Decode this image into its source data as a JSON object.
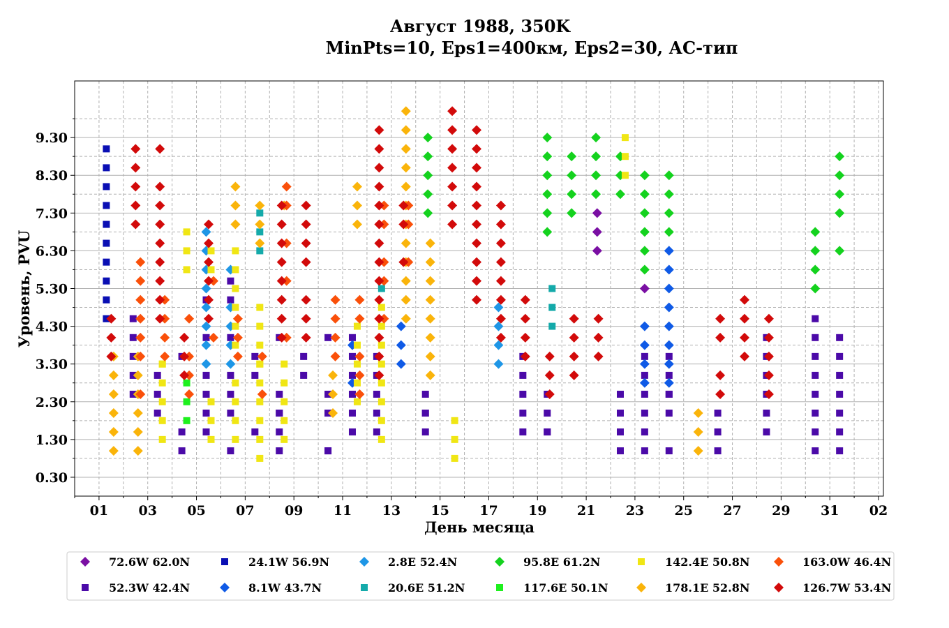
{
  "chart_data": {
    "type": "scatter",
    "title": [
      "Август 1988, 350K",
      "MinPts=10, Eps1=400км, Eps2=30, АС-тип"
    ],
    "xlabel": "День месяца",
    "ylabel": "Уровень, PVU",
    "x_ticks": [
      "01",
      "03",
      "05",
      "07",
      "09",
      "11",
      "13",
      "15",
      "17",
      "19",
      "21",
      "23",
      "25",
      "27",
      "29",
      "31",
      "02"
    ],
    "y_ticks": [
      "0.30",
      "1.30",
      "2.30",
      "3.30",
      "4.30",
      "5.30",
      "6.30",
      "7.30",
      "8.30",
      "9.30"
    ],
    "xlim": [
      0,
      33.2
    ],
    "ylim": [
      -0.2,
      10.8
    ],
    "grid": true,
    "legend_position": "bottom",
    "series": [
      {
        "name": "72.6W 62.0N",
        "marker": "diamond",
        "color": "#7a0fa3",
        "x": [
          21.45,
          21.45,
          21.45,
          23.4
        ],
        "y": [
          7.3,
          6.8,
          6.3,
          5.3
        ]
      },
      {
        "name": "52.3W 42.4N",
        "marker": "square",
        "color": "#4b0aa8",
        "x": [
          2.4,
          2.4,
          2.4,
          2.4,
          2.4,
          3.4,
          3.4,
          3.4,
          4.4,
          4.4,
          4.4,
          5.4,
          5.4,
          5.4,
          5.4,
          5.4,
          5.4,
          6.4,
          6.4,
          6.4,
          6.4,
          6.4,
          6.4,
          6.4,
          7.4,
          7.4,
          7.4,
          8.4,
          8.4,
          8.4,
          8.4,
          8.4,
          8.4,
          9.4,
          9.4,
          10.4,
          10.4,
          10.4,
          10.4,
          10.4,
          10.4,
          11.4,
          11.4,
          11.4,
          11.4,
          11.4,
          11.4,
          12.4,
          12.4,
          12.4,
          12.4,
          12.4,
          14.4,
          14.4,
          14.4,
          14.4,
          18.4,
          18.4,
          18.4,
          18.4,
          18.4,
          19.4,
          19.4,
          19.4,
          19.4,
          22.4,
          22.4,
          22.4,
          22.4,
          23.4,
          23.4,
          23.4,
          23.4,
          23.4,
          23.4,
          24.4,
          24.4,
          24.4,
          24.4,
          24.4,
          24.4,
          26.4,
          26.4,
          26.4,
          28.4,
          28.4,
          28.4,
          28.4,
          28.4,
          28.4,
          30.4,
          30.4,
          30.4,
          30.4,
          30.4,
          30.4,
          30.4,
          30.4,
          31.4,
          31.4,
          31.4,
          31.4,
          31.4,
          31.4,
          31.4
        ],
        "y": [
          4.5,
          4.0,
          3.5,
          3.0,
          2.5,
          3.0,
          2.5,
          2.0,
          3.5,
          1.5,
          1.0,
          5.0,
          4.0,
          3.0,
          2.5,
          2.0,
          1.5,
          1.0,
          5.5,
          5.0,
          4.0,
          3.0,
          2.5,
          2.0,
          1.5,
          3.5,
          3.0,
          2.5,
          2.0,
          2.0,
          1.5,
          1.0,
          4.0,
          3.5,
          3.0,
          2.5,
          2.0,
          1.0,
          2.0,
          1.0,
          4.0,
          3.5,
          3.0,
          2.5,
          2.0,
          1.5,
          4.0,
          3.5,
          3.0,
          2.5,
          2.0,
          1.5,
          2.0,
          1.5,
          2.5,
          2.0,
          1.5,
          3.5,
          3.0,
          2.5,
          2.0,
          1.5,
          2.5,
          2.0,
          1.5,
          1.0,
          2.5,
          2.0,
          1.5,
          1.0,
          3.5,
          3.0,
          2.5,
          2.0,
          1.5,
          1.0,
          3.5,
          3.0,
          2.5,
          2.0,
          2.5,
          2.0,
          1.5,
          1.0,
          4.0,
          3.5,
          3.0,
          2.5,
          2.0,
          1.5,
          4.5,
          4.0,
          3.5,
          3.0,
          2.5,
          2.0,
          1.5,
          1.0,
          4.0,
          3.5,
          3.0,
          2.5,
          2.0,
          1.5,
          1.0
        ]
      },
      {
        "name": "24.1W 56.9N",
        "marker": "square",
        "color": "#0a0fb4",
        "x": [
          1.3,
          1.3,
          1.3,
          1.3,
          1.3,
          1.3,
          1.3,
          1.3,
          1.3,
          1.3
        ],
        "y": [
          9.0,
          8.5,
          8.0,
          7.5,
          7.0,
          6.5,
          6.0,
          5.5,
          5.0,
          4.5
        ]
      },
      {
        "name": "8.1W 43.7N",
        "marker": "diamond",
        "color": "#0f5ae6",
        "x": [
          11.4,
          11.4,
          13.4,
          13.4,
          13.4,
          23.4,
          23.4,
          23.4,
          23.4,
          24.4,
          24.4,
          24.4,
          24.4,
          24.4,
          24.4,
          24.4,
          24.4
        ],
        "y": [
          3.8,
          2.8,
          4.3,
          3.8,
          3.3,
          4.3,
          3.8,
          3.3,
          2.8,
          6.3,
          5.8,
          5.3,
          4.8,
          4.3,
          3.8,
          3.3,
          2.8
        ]
      },
      {
        "name": "2.8E 52.4N",
        "marker": "diamond",
        "color": "#1e96e6",
        "x": [
          5.4,
          5.4,
          5.4,
          5.4,
          5.4,
          5.4,
          5.4,
          5.4,
          6.4,
          6.4,
          6.4,
          6.4,
          6.4,
          17.4,
          17.4,
          17.4,
          17.4
        ],
        "y": [
          6.8,
          6.3,
          5.8,
          5.3,
          4.8,
          4.3,
          3.8,
          3.3,
          5.8,
          4.8,
          4.3,
          3.8,
          3.3,
          4.8,
          4.3,
          3.8,
          3.3
        ]
      },
      {
        "name": "20.6E 51.2N",
        "marker": "square",
        "color": "#14aaaa",
        "x": [
          7.6,
          7.6,
          7.6,
          12.6,
          19.6,
          19.6,
          19.6
        ],
        "y": [
          7.3,
          6.8,
          6.3,
          5.3,
          5.3,
          4.8,
          4.3
        ]
      },
      {
        "name": "95.8E 61.2N",
        "marker": "diamond",
        "color": "#14d21e",
        "x": [
          14.5,
          14.5,
          14.5,
          14.5,
          14.5,
          19.4,
          19.4,
          19.4,
          19.4,
          19.4,
          19.4,
          20.4,
          20.4,
          20.4,
          20.4,
          21.4,
          21.4,
          21.4,
          21.4,
          22.4,
          22.4,
          22.4,
          23.4,
          23.4,
          23.4,
          23.4,
          23.4,
          23.4,
          24.4,
          24.4,
          24.4,
          24.4,
          30.4,
          30.4,
          30.4,
          30.4,
          31.4,
          31.4,
          31.4,
          31.4,
          31.4
        ],
        "y": [
          9.3,
          8.8,
          8.3,
          7.8,
          7.3,
          9.3,
          8.8,
          8.3,
          7.8,
          7.3,
          6.8,
          8.8,
          8.3,
          7.8,
          7.3,
          9.3,
          8.8,
          8.3,
          7.8,
          8.8,
          8.3,
          7.8,
          8.3,
          7.8,
          7.3,
          6.8,
          6.3,
          5.8,
          8.3,
          7.8,
          7.3,
          6.8,
          6.8,
          6.3,
          5.8,
          5.3,
          8.8,
          8.3,
          7.8,
          7.3,
          6.3
        ]
      },
      {
        "name": "117.6E 50.1N",
        "marker": "square",
        "color": "#1ef01e",
        "x": [
          4.6,
          4.6,
          4.6
        ],
        "y": [
          2.8,
          2.3,
          1.8
        ]
      },
      {
        "name": "142.4E 50.8N",
        "marker": "square",
        "color": "#f0e614",
        "x": [
          3.6,
          3.6,
          3.6,
          3.6,
          3.6,
          3.6,
          4.6,
          4.6,
          4.6,
          5.6,
          5.6,
          5.6,
          5.6,
          5.6,
          6.6,
          6.6,
          6.6,
          6.6,
          6.6,
          6.6,
          6.6,
          6.6,
          6.6,
          6.6,
          7.6,
          7.6,
          7.6,
          7.6,
          7.6,
          7.6,
          7.6,
          7.6,
          7.6,
          7.6,
          8.6,
          8.6,
          8.6,
          8.6,
          8.6,
          11.6,
          11.6,
          11.6,
          11.6,
          11.6,
          12.6,
          12.6,
          12.6,
          12.6,
          12.6,
          12.6,
          12.6,
          12.6,
          15.6,
          15.6,
          15.6,
          22.6,
          22.6,
          22.6
        ],
        "y": [
          3.3,
          2.8,
          2.3,
          1.8,
          1.3,
          3.3,
          6.8,
          6.3,
          5.8,
          6.3,
          5.8,
          2.3,
          1.8,
          1.3,
          6.3,
          5.8,
          5.3,
          4.8,
          4.3,
          3.8,
          2.8,
          2.3,
          1.8,
          1.3,
          4.8,
          4.3,
          3.8,
          3.3,
          2.8,
          2.3,
          1.8,
          1.3,
          0.8,
          3.3,
          3.3,
          2.8,
          2.3,
          1.8,
          1.3,
          4.3,
          3.8,
          3.3,
          2.8,
          2.3,
          4.8,
          4.3,
          3.8,
          3.3,
          2.8,
          2.3,
          1.8,
          1.3,
          1.8,
          1.3,
          0.8,
          9.3,
          8.8,
          8.3
        ]
      },
      {
        "name": "178.1E 52.8N",
        "marker": "diamond",
        "color": "#fab40a",
        "x": [
          1.6,
          1.6,
          1.6,
          1.6,
          1.6,
          1.6,
          2.6,
          2.6,
          2.6,
          2.6,
          2.6,
          2.6,
          6.6,
          6.6,
          6.6,
          7.6,
          7.6,
          7.6,
          8.6,
          10.6,
          10.6,
          10.6,
          11.6,
          11.6,
          11.6,
          13.6,
          13.6,
          13.6,
          13.6,
          13.6,
          13.6,
          13.6,
          13.6,
          13.6,
          13.6,
          13.6,
          13.6,
          14.6,
          14.6,
          14.6,
          14.6,
          14.6,
          14.6,
          14.6,
          14.6,
          25.6,
          25.6,
          25.6
        ],
        "y": [
          3.5,
          3.0,
          2.5,
          2.0,
          1.5,
          1.0,
          3.5,
          3.0,
          2.5,
          2.0,
          1.5,
          1.0,
          8.0,
          7.5,
          7.0,
          7.5,
          7.0,
          6.5,
          7.5,
          3.0,
          2.5,
          2.0,
          8.0,
          7.5,
          7.0,
          10.0,
          9.5,
          9.0,
          8.5,
          8.0,
          7.5,
          7.0,
          6.5,
          6.0,
          5.5,
          5.0,
          4.5,
          6.5,
          6.0,
          5.5,
          5.0,
          4.5,
          4.0,
          3.5,
          3.0,
          2.0,
          1.5,
          1.0
        ]
      },
      {
        "name": "163.0W 46.4N",
        "marker": "diamond",
        "color": "#fa500a",
        "x": [
          2.7,
          2.7,
          2.7,
          2.7,
          2.7,
          2.7,
          2.7,
          3.7,
          3.7,
          3.7,
          3.7,
          4.7,
          4.7,
          4.7,
          4.7,
          5.7,
          5.7,
          6.7,
          6.7,
          6.7,
          7.7,
          7.7,
          8.7,
          8.7,
          8.7,
          8.7,
          8.7,
          10.7,
          10.7,
          10.7,
          10.7,
          11.7,
          11.7,
          11.7,
          11.7,
          11.7,
          12.7,
          12.7,
          12.7,
          12.7,
          12.7,
          13.7,
          13.7,
          13.7
        ],
        "y": [
          6.0,
          5.5,
          5.0,
          4.5,
          4.0,
          3.5,
          2.5,
          5.0,
          4.5,
          4.0,
          3.5,
          4.5,
          3.5,
          3.0,
          2.5,
          5.5,
          4.0,
          4.5,
          4.0,
          3.5,
          3.5,
          2.5,
          8.0,
          7.5,
          6.5,
          5.5,
          4.0,
          5.0,
          4.5,
          4.0,
          3.5,
          5.0,
          4.5,
          3.5,
          3.0,
          2.5,
          7.5,
          7.0,
          6.0,
          5.5,
          4.5,
          7.5,
          7.0,
          6.0
        ]
      },
      {
        "name": "126.7W 53.4N",
        "marker": "diamond",
        "color": "#d20a0a",
        "x": [
          1.5,
          1.5,
          1.5,
          2.5,
          2.5,
          2.5,
          2.5,
          2.5,
          3.5,
          3.5,
          3.5,
          3.5,
          3.5,
          3.5,
          3.5,
          3.5,
          3.5,
          4.5,
          4.5,
          4.5,
          5.5,
          5.5,
          5.5,
          5.5,
          5.5,
          5.5,
          8.5,
          8.5,
          8.5,
          8.5,
          8.5,
          8.5,
          8.5,
          8.5,
          9.5,
          9.5,
          9.5,
          9.5,
          9.5,
          9.5,
          9.5,
          12.5,
          12.5,
          12.5,
          12.5,
          12.5,
          12.5,
          12.5,
          12.5,
          12.5,
          12.5,
          12.5,
          12.5,
          12.5,
          12.5,
          13.5,
          13.5,
          13.5,
          15.5,
          15.5,
          15.5,
          15.5,
          15.5,
          15.5,
          15.5,
          16.5,
          16.5,
          16.5,
          16.5,
          16.5,
          16.5,
          16.5,
          16.5,
          16.5,
          16.5,
          17.5,
          17.5,
          17.5,
          17.5,
          17.5,
          17.5,
          17.5,
          17.5,
          18.5,
          18.5,
          18.5,
          18.5,
          19.5,
          19.5,
          19.5,
          20.5,
          20.5,
          20.5,
          20.5,
          21.5,
          21.5,
          21.5,
          26.5,
          26.5,
          26.5,
          26.5,
          27.5,
          27.5,
          27.5,
          27.5,
          28.5,
          28.5,
          28.5,
          28.5,
          28.5
        ],
        "y": [
          4.5,
          4.0,
          3.5,
          9.0,
          8.5,
          8.0,
          7.5,
          7.0,
          9.0,
          8.0,
          7.5,
          7.0,
          6.5,
          6.0,
          5.5,
          5.0,
          4.5,
          4.0,
          3.5,
          3.0,
          7.0,
          6.5,
          6.0,
          5.5,
          5.0,
          4.5,
          7.5,
          7.0,
          6.5,
          6.0,
          5.5,
          5.0,
          4.5,
          4.0,
          7.5,
          7.0,
          6.5,
          6.0,
          5.0,
          4.5,
          4.0,
          9.5,
          9.0,
          8.5,
          8.0,
          7.5,
          7.0,
          6.5,
          6.0,
          5.5,
          5.0,
          4.5,
          4.0,
          3.5,
          3.0,
          7.5,
          7.0,
          6.0,
          10.0,
          9.5,
          9.0,
          8.5,
          8.0,
          7.5,
          7.0,
          9.5,
          9.0,
          8.5,
          8.0,
          7.5,
          7.0,
          6.5,
          6.0,
          5.5,
          5.0,
          7.5,
          7.0,
          6.5,
          6.0,
          5.5,
          5.0,
          4.5,
          4.0,
          5.0,
          4.5,
          4.0,
          3.5,
          3.5,
          3.0,
          2.5,
          4.5,
          4.0,
          3.5,
          3.0,
          4.5,
          4.0,
          3.5,
          4.5,
          4.0,
          3.0,
          2.5,
          5.0,
          4.5,
          4.0,
          3.5,
          4.5,
          4.0,
          3.5,
          3.0,
          2.5
        ]
      }
    ]
  }
}
